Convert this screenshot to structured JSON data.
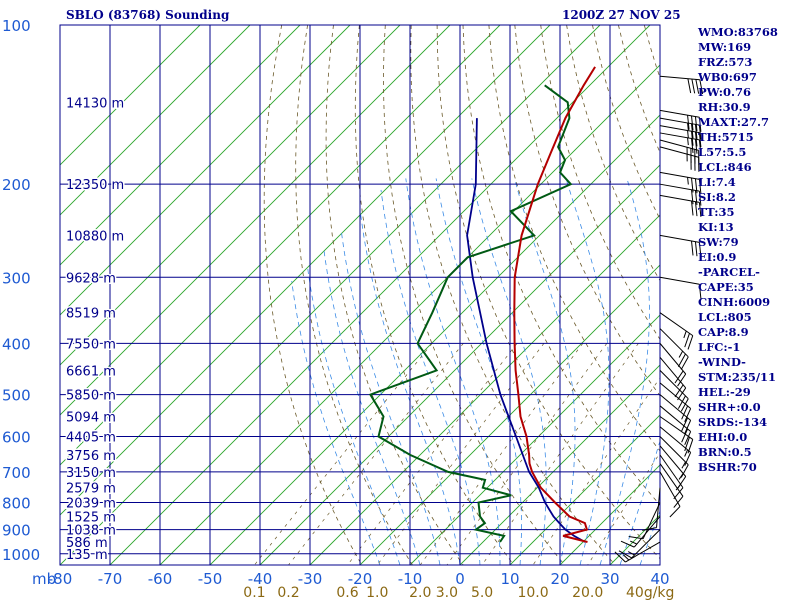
{
  "title": "SBLO (83768) Sounding",
  "datetime": "1200Z 27 NOV 25",
  "colors": {
    "grid": "#00008b",
    "axis_text": "#1e5ad2",
    "isotherm": "#2aa52a",
    "dry_adiabat": "#6b5a2a",
    "moist_adiabat": "#3c8ce6",
    "mixing_ratio": "#6b5a2a",
    "temperature": "#b40000",
    "dewpoint": "#005a14",
    "parcel": "#00008b",
    "wind": "#000000",
    "text": "#00008b"
  },
  "chart_data": {
    "type": "skew-t",
    "pressure_levels": [
      100,
      200,
      300,
      400,
      500,
      600,
      700,
      800,
      900,
      1000
    ],
    "temperature_ticks": [
      -80,
      -70,
      -60,
      -50,
      -40,
      -30,
      -20,
      -10,
      0,
      10,
      20,
      30,
      40
    ],
    "pressure_unit_label": "mb",
    "temperature_range_c": [
      -80,
      40
    ],
    "pressure_range_mb": [
      100,
      1050
    ],
    "mixing_ratio_ticks": [
      "0.1",
      "0.2",
      "0.6",
      "1.0",
      "2.0",
      "3.0",
      "5.0",
      "10.0",
      "20.0"
    ],
    "mixing_ratio_values": [
      0.1,
      0.2,
      0.6,
      1.0,
      2.0,
      3.0,
      5.0,
      10.0,
      20.0
    ],
    "mixing_ratio_unit": "g/kg",
    "mixing_ratio_end_label": "40g/kg",
    "height_labels": [
      {
        "p": 140,
        "label": "14130 m"
      },
      {
        "p": 200,
        "label": "12350 m"
      },
      {
        "p": 250,
        "label": "10880 m"
      },
      {
        "p": 300,
        "label": "9628 m"
      },
      {
        "p": 350,
        "label": "8519 m"
      },
      {
        "p": 400,
        "label": "7550 m"
      },
      {
        "p": 450,
        "label": "6661 m"
      },
      {
        "p": 500,
        "label": "5850 m"
      },
      {
        "p": 550,
        "label": "5094 m"
      },
      {
        "p": 600,
        "label": "4405 m"
      },
      {
        "p": 650,
        "label": "3756 m"
      },
      {
        "p": 700,
        "label": "3150 m"
      },
      {
        "p": 750,
        "label": "2579 m"
      },
      {
        "p": 800,
        "label": "2039 m"
      },
      {
        "p": 850,
        "label": "1525 m"
      },
      {
        "p": 900,
        "label": "1038 m"
      },
      {
        "p": 950,
        "label": "586 m"
      },
      {
        "p": 1000,
        "label": "135 m"
      }
    ],
    "temperature_profile": [
      {
        "p": 950,
        "t": 20.9
      },
      {
        "p": 925,
        "t": 14.8
      },
      {
        "p": 900,
        "t": 18.3
      },
      {
        "p": 875,
        "t": 16.6
      },
      {
        "p": 850,
        "t": 12.2
      },
      {
        "p": 800,
        "t": 6.5
      },
      {
        "p": 750,
        "t": 0.7
      },
      {
        "p": 700,
        "t": -4.2
      },
      {
        "p": 675,
        "t": -6.4
      },
      {
        "p": 650,
        "t": -8.2
      },
      {
        "p": 600,
        "t": -12.4
      },
      {
        "p": 550,
        "t": -17.6
      },
      {
        "p": 500,
        "t": -22.4
      },
      {
        "p": 450,
        "t": -27.8
      },
      {
        "p": 400,
        "t": -33.4
      },
      {
        "p": 350,
        "t": -39.6
      },
      {
        "p": 300,
        "t": -46.6
      },
      {
        "p": 250,
        "t": -53.6
      },
      {
        "p": 200,
        "t": -60.6
      },
      {
        "p": 175,
        "t": -64.2
      },
      {
        "p": 150,
        "t": -68.3
      },
      {
        "p": 130,
        "t": -71.2
      },
      {
        "p": 120,
        "t": -72.6
      }
    ],
    "dewpoint_profile": [
      {
        "p": 950,
        "t": 3.4
      },
      {
        "p": 925,
        "t": 3.0
      },
      {
        "p": 900,
        "t": -3.9
      },
      {
        "p": 875,
        "t": -3.4
      },
      {
        "p": 850,
        "t": -5.7
      },
      {
        "p": 800,
        "t": -8.8
      },
      {
        "p": 775,
        "t": -3.7
      },
      {
        "p": 750,
        "t": -10.9
      },
      {
        "p": 725,
        "t": -12.0
      },
      {
        "p": 700,
        "t": -21.0
      },
      {
        "p": 650,
        "t": -32.0
      },
      {
        "p": 600,
        "t": -42.0
      },
      {
        "p": 550,
        "t": -45.0
      },
      {
        "p": 500,
        "t": -52.0
      },
      {
        "p": 450,
        "t": -43.6
      },
      {
        "p": 400,
        "t": -52.8
      },
      {
        "p": 350,
        "t": -56.0
      },
      {
        "p": 300,
        "t": -60.0
      },
      {
        "p": 275,
        "t": -60.0
      },
      {
        "p": 250,
        "t": -51.1
      },
      {
        "p": 225,
        "t": -60.6
      },
      {
        "p": 200,
        "t": -54.0
      },
      {
        "p": 190,
        "t": -58.5
      },
      {
        "p": 180,
        "t": -60.0
      },
      {
        "p": 170,
        "t": -64.0
      },
      {
        "p": 150,
        "t": -67.5
      },
      {
        "p": 140,
        "t": -71.0
      },
      {
        "p": 130,
        "t": -79.0
      }
    ],
    "parcel_profile": [
      {
        "p": 950,
        "t": 20.4
      },
      {
        "p": 925,
        "t": 17.0
      },
      {
        "p": 900,
        "t": 14.0
      },
      {
        "p": 875,
        "t": 11.5
      },
      {
        "p": 850,
        "t": 9.0
      },
      {
        "p": 800,
        "t": 4.5
      },
      {
        "p": 750,
        "t": 0.3
      },
      {
        "p": 700,
        "t": -4.8
      },
      {
        "p": 600,
        "t": -14.5
      },
      {
        "p": 500,
        "t": -26.0
      },
      {
        "p": 400,
        "t": -39.0
      },
      {
        "p": 300,
        "t": -55.0
      },
      {
        "p": 250,
        "t": -64.5
      },
      {
        "p": 200,
        "t": -73.0
      },
      {
        "p": 150,
        "t": -86.0
      }
    ],
    "wind_profile": [
      {
        "p": 125,
        "dir": 95,
        "spd": 40
      },
      {
        "p": 145,
        "dir": 100,
        "spd": 40
      },
      {
        "p": 150,
        "dir": 100,
        "spd": 35
      },
      {
        "p": 155,
        "dir": 100,
        "spd": 35
      },
      {
        "p": 160,
        "dir": 100,
        "spd": 35
      },
      {
        "p": 165,
        "dir": 105,
        "spd": 35
      },
      {
        "p": 170,
        "dir": 105,
        "spd": 35
      },
      {
        "p": 190,
        "dir": 100,
        "spd": 35
      },
      {
        "p": 200,
        "dir": 100,
        "spd": 30
      },
      {
        "p": 210,
        "dir": 100,
        "spd": 30
      },
      {
        "p": 250,
        "dir": 100,
        "spd": 30
      },
      {
        "p": 300,
        "dir": 100,
        "spd": 10
      },
      {
        "p": 350,
        "dir": 125,
        "spd": 25
      },
      {
        "p": 375,
        "dir": 135,
        "spd": 25
      },
      {
        "p": 400,
        "dir": 140,
        "spd": 20
      },
      {
        "p": 425,
        "dir": 140,
        "spd": 20
      },
      {
        "p": 450,
        "dir": 135,
        "spd": 20
      },
      {
        "p": 475,
        "dir": 130,
        "spd": 20
      },
      {
        "p": 500,
        "dir": 130,
        "spd": 20
      },
      {
        "p": 525,
        "dir": 130,
        "spd": 20
      },
      {
        "p": 550,
        "dir": 125,
        "spd": 20
      },
      {
        "p": 575,
        "dir": 130,
        "spd": 15
      },
      {
        "p": 600,
        "dir": 135,
        "spd": 15
      },
      {
        "p": 625,
        "dir": 140,
        "spd": 15
      },
      {
        "p": 650,
        "dir": 145,
        "spd": 15
      },
      {
        "p": 675,
        "dir": 145,
        "spd": 10
      },
      {
        "p": 700,
        "dir": 150,
        "spd": 10
      },
      {
        "p": 750,
        "dir": 185,
        "spd": 10
      },
      {
        "p": 800,
        "dir": 205,
        "spd": 10
      },
      {
        "p": 850,
        "dir": 220,
        "spd": 15
      },
      {
        "p": 900,
        "dir": 225,
        "spd": 15
      },
      {
        "p": 950,
        "dir": 240,
        "spd": 15
      }
    ]
  },
  "parameters": [
    "WMO:83768",
    "MW:169",
    "FRZ:573",
    "WB0:697",
    "PW:0.76",
    "RH:30.9",
    "MAXT:27.7",
    "TH:5715",
    "L57:5.5",
    "LCL:846",
    "LI:7.4",
    "SI:8.2",
    "TT:35",
    "KI:13",
    "SW:79",
    "EI:0.9",
    "-PARCEL-",
    "CAPE:35",
    "CINH:6009",
    "LCL:805",
    "CAP:8.9",
    "LFC:-1",
    "-WIND-",
    "STM:235/11",
    "HEL:-29",
    "SHR+:0.0",
    "SRDS:-134",
    "EHI:0.0",
    "BRN:0.5",
    "BSHR:70"
  ]
}
